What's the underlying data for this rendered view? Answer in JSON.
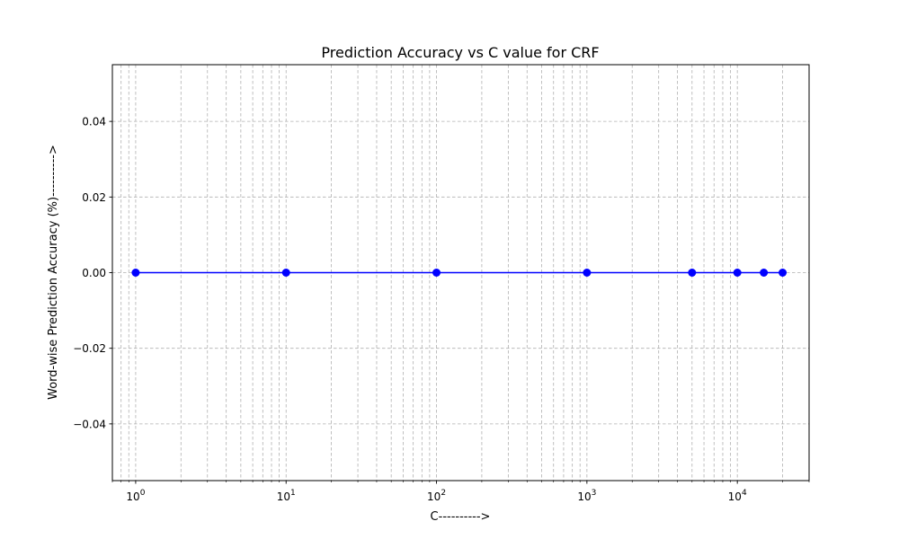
{
  "chart_data": {
    "type": "line",
    "title": "Prediction Accuracy vs C value for CRF",
    "xlabel": "C---------->",
    "ylabel": "Word-wise Prediction Accuracy (%)---------->",
    "x_scale": "log",
    "x_ticks": [
      {
        "value": 1,
        "base": "10",
        "exp": "0"
      },
      {
        "value": 10,
        "base": "10",
        "exp": "1"
      },
      {
        "value": 100,
        "base": "10",
        "exp": "2"
      },
      {
        "value": 1000,
        "base": "10",
        "exp": "3"
      },
      {
        "value": 10000,
        "base": "10",
        "exp": "4"
      }
    ],
    "y_ticks": [
      {
        "value": -0.04,
        "label": "−0.04"
      },
      {
        "value": -0.02,
        "label": "−0.02"
      },
      {
        "value": 0.0,
        "label": "0.00"
      },
      {
        "value": 0.02,
        "label": "0.02"
      },
      {
        "value": 0.04,
        "label": "0.04"
      }
    ],
    "xlim": [
      0.7,
      30000
    ],
    "ylim": [
      -0.055,
      0.055
    ],
    "grid": true,
    "series": [
      {
        "color": "#0000ff",
        "marker": "circle",
        "x": [
          1,
          10,
          100,
          1000,
          5000,
          10000,
          15000,
          20000
        ],
        "y": [
          0,
          0,
          0,
          0,
          0,
          0,
          0,
          0
        ]
      }
    ]
  }
}
